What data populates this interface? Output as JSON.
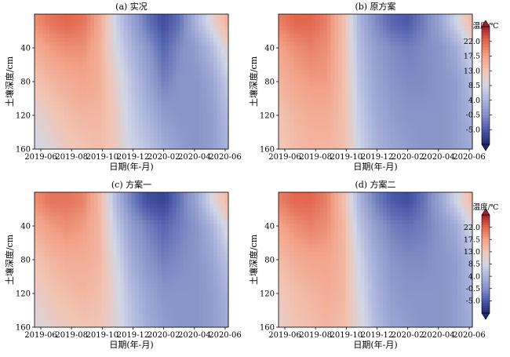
{
  "figure": {
    "colorbar_title": "温度/℃"
  },
  "chart_data": [
    {
      "type": "heatmap",
      "panel": "(a) 实况",
      "title": "(a) 实况",
      "xlabel": "日期(年-月)",
      "ylabel": "土壤深度/cm",
      "xticks": [
        "2019-06",
        "2019-08",
        "2019-10",
        "2019-12",
        "2020-02",
        "2020-04",
        "2020-06"
      ],
      "yticks": [
        40,
        80,
        120,
        160
      ],
      "ylim": [
        160,
        0
      ],
      "zlabel": "温度/℃",
      "colorbar_ticks": [
        22.0,
        17.5,
        13.0,
        8.5,
        4.0,
        -0.5,
        -5.0
      ],
      "colorbar_range": [
        -9.5,
        26.5
      ],
      "rows_depth_cm": [
        10,
        40,
        80,
        120,
        160
      ],
      "cols_month": [
        "2019-06",
        "2019-07",
        "2019-08",
        "2019-09",
        "2019-10",
        "2019-11",
        "2019-12",
        "2020-01",
        "2020-02",
        "2020-03",
        "2020-04",
        "2020-05",
        "2020-06"
      ],
      "values": [
        [
          19,
          21,
          22,
          21,
          17,
          8,
          2,
          -3,
          -6,
          -3,
          4,
          10,
          16
        ],
        [
          16,
          18,
          19,
          19,
          16,
          9,
          4,
          0,
          -4,
          -1,
          1,
          5,
          11
        ],
        [
          13,
          15,
          16,
          17,
          16,
          11,
          6,
          2,
          -2,
          0,
          0,
          2,
          7
        ],
        [
          10,
          12,
          14,
          15,
          15,
          12,
          7,
          4,
          1,
          0,
          0,
          1,
          5
        ],
        [
          8,
          10,
          12,
          13,
          14,
          12,
          8,
          6,
          3,
          1,
          0,
          1,
          4
        ]
      ]
    },
    {
      "type": "heatmap",
      "panel": "(b) 原方案",
      "title": "(b) 原方案",
      "xlabel": "日期(年-月)",
      "ylabel": "土壤深度/cm",
      "xticks": [
        "2019-06",
        "2019-08",
        "2019-10",
        "2019-12",
        "2020-02",
        "2020-04",
        "2020-06"
      ],
      "yticks": [
        40,
        80,
        120,
        160
      ],
      "ylim": [
        160,
        0
      ],
      "zlabel": "温度/℃",
      "colorbar_ticks": [
        22.0,
        17.5,
        13.0,
        8.5,
        4.0,
        -0.5,
        -5.0
      ],
      "colorbar_range": [
        -9.5,
        26.5
      ],
      "rows_depth_cm": [
        10,
        40,
        80,
        120,
        160
      ],
      "cols_month": [
        "2019-06",
        "2019-07",
        "2019-08",
        "2019-09",
        "2019-10",
        "2019-11",
        "2019-12",
        "2020-01",
        "2020-02",
        "2020-03",
        "2020-04",
        "2020-05",
        "2020-06"
      ],
      "values": [
        [
          20,
          22,
          22,
          20,
          14,
          4,
          -1,
          -4,
          -5,
          -2,
          2,
          8,
          15
        ],
        [
          17,
          19,
          20,
          19,
          14,
          5,
          1,
          -1,
          -2,
          -1,
          0,
          3,
          9
        ],
        [
          15,
          17,
          18,
          18,
          14,
          6,
          2,
          0,
          -1,
          -1,
          0,
          1,
          5
        ],
        [
          13,
          15,
          16,
          16,
          14,
          7,
          3,
          1,
          0,
          0,
          0,
          1,
          4
        ],
        [
          12,
          14,
          15,
          15,
          14,
          8,
          4,
          2,
          1,
          0,
          0,
          1,
          3
        ]
      ]
    },
    {
      "type": "heatmap",
      "panel": "(c) 方案一",
      "title": "(c) 方案一",
      "xlabel": "日期(年-月)",
      "ylabel": "土壤深度/cm",
      "xticks": [
        "2019-06",
        "2019-08",
        "2019-10",
        "2019-12",
        "2020-02",
        "2020-04",
        "2020-06"
      ],
      "yticks": [
        40,
        80,
        120,
        160
      ],
      "ylim": [
        160,
        0
      ],
      "zlabel": "温度/℃",
      "colorbar_ticks": [
        22.0,
        17.5,
        13.0,
        8.5,
        4.0,
        -0.5,
        -5.0
      ],
      "colorbar_range": [
        -9.5,
        26.5
      ],
      "rows_depth_cm": [
        10,
        40,
        80,
        120,
        160
      ],
      "cols_month": [
        "2019-06",
        "2019-07",
        "2019-08",
        "2019-09",
        "2019-10",
        "2019-11",
        "2019-12",
        "2020-01",
        "2020-02",
        "2020-03",
        "2020-04",
        "2020-05",
        "2020-06"
      ],
      "values": [
        [
          19,
          21,
          21,
          20,
          15,
          5,
          -2,
          -6,
          -7,
          -3,
          2,
          9,
          15
        ],
        [
          16,
          18,
          19,
          18,
          15,
          7,
          1,
          -2,
          -4,
          -2,
          0,
          4,
          10
        ],
        [
          13,
          15,
          16,
          16,
          15,
          9,
          3,
          0,
          -2,
          -1,
          0,
          2,
          6
        ],
        [
          11,
          13,
          14,
          15,
          14,
          10,
          5,
          2,
          0,
          0,
          0,
          1,
          4
        ],
        [
          9,
          11,
          12,
          13,
          13,
          10,
          6,
          3,
          1,
          0,
          0,
          1,
          3
        ]
      ]
    },
    {
      "type": "heatmap",
      "panel": "(d) 方案二",
      "title": "(d) 方案二",
      "xlabel": "日期(年-月)",
      "ylabel": "土壤深度/cm",
      "xticks": [
        "2019-06",
        "2019-08",
        "2019-10",
        "2019-12",
        "2020-02",
        "2020-04",
        "2020-06"
      ],
      "yticks": [
        40,
        80,
        120,
        160
      ],
      "ylim": [
        160,
        0
      ],
      "zlabel": "温度/℃",
      "colorbar_ticks": [
        22.0,
        17.5,
        13.0,
        8.5,
        4.0,
        -0.5,
        -5.0
      ],
      "colorbar_range": [
        -9.5,
        26.5
      ],
      "rows_depth_cm": [
        10,
        40,
        80,
        120,
        160
      ],
      "cols_month": [
        "2019-06",
        "2019-07",
        "2019-08",
        "2019-09",
        "2019-10",
        "2019-11",
        "2019-12",
        "2020-01",
        "2020-02",
        "2020-03",
        "2020-04",
        "2020-05",
        "2020-06"
      ],
      "values": [
        [
          20,
          22,
          22,
          20,
          14,
          4,
          -2,
          -5,
          -6,
          -3,
          2,
          8,
          15
        ],
        [
          17,
          19,
          20,
          19,
          15,
          6,
          1,
          -2,
          -3,
          -2,
          0,
          3,
          9
        ],
        [
          14,
          16,
          17,
          17,
          15,
          8,
          3,
          0,
          -1,
          -1,
          0,
          1,
          5
        ],
        [
          12,
          14,
          15,
          16,
          15,
          9,
          4,
          1,
          0,
          0,
          0,
          1,
          4
        ],
        [
          11,
          13,
          14,
          15,
          14,
          10,
          5,
          2,
          1,
          0,
          0,
          1,
          3
        ]
      ]
    }
  ],
  "colormap": {
    "stops": [
      {
        "t": -9.5,
        "color": "#202c6e"
      },
      {
        "t": -5.0,
        "color": "#4a5aa8"
      },
      {
        "t": -0.5,
        "color": "#8592c8"
      },
      {
        "t": 4.0,
        "color": "#aab4dc"
      },
      {
        "t": 8.5,
        "color": "#d3d7e6"
      },
      {
        "t": 13.0,
        "color": "#f2c4b4"
      },
      {
        "t": 17.5,
        "color": "#f2a288"
      },
      {
        "t": 22.0,
        "color": "#e2674f"
      },
      {
        "t": 26.5,
        "color": "#a3202a"
      }
    ]
  }
}
